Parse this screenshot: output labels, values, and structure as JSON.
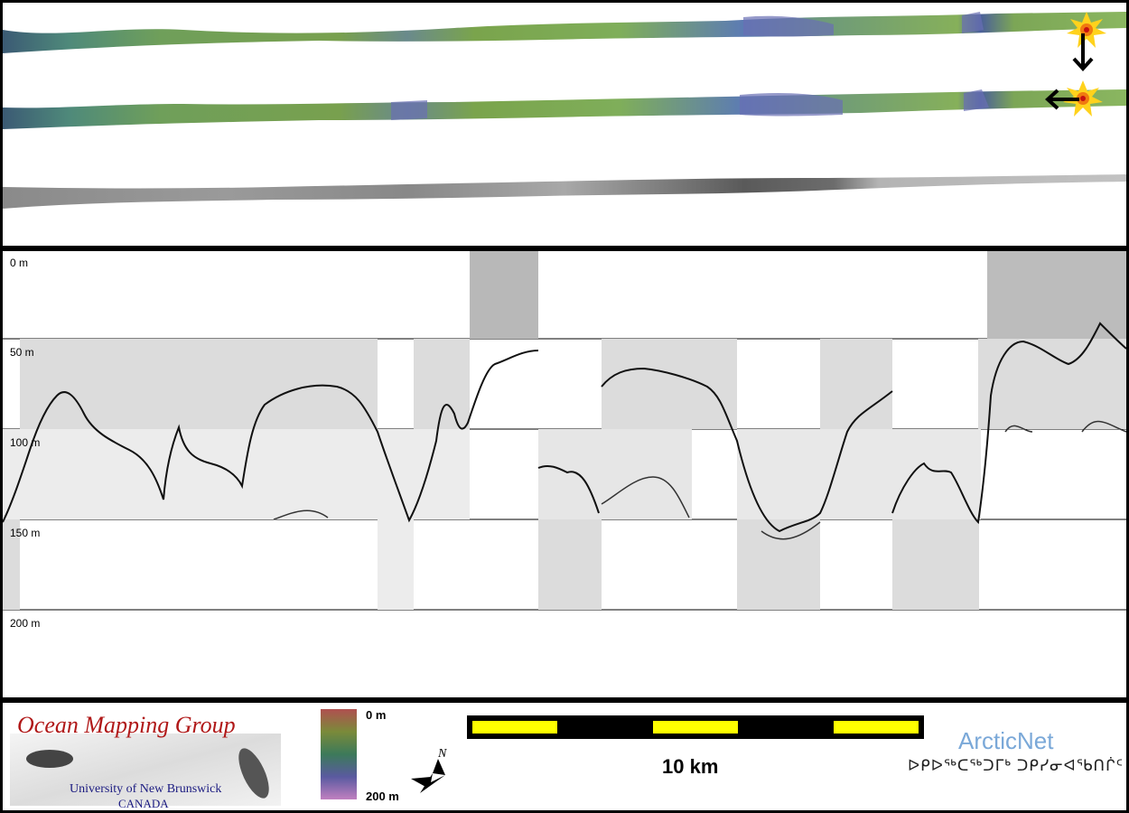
{
  "profile": {
    "depth_labels": [
      "0 m",
      "50 m",
      "100 m",
      "150 m",
      "200 m"
    ]
  },
  "footer": {
    "ocean_mapping_group": {
      "title": "Ocean Mapping Group",
      "university": "University of New Brunswick",
      "country": "CANADA"
    },
    "color_scale": {
      "top_label": "0 m",
      "bottom_label": "200 m"
    },
    "compass": {
      "north_label": "N"
    },
    "scale_bar": {
      "label": "10 km",
      "colors": [
        "#ffff00",
        "#000000"
      ]
    },
    "arcticnet": {
      "name": "ArcticNet",
      "inuktitut": "ᐅᑭᐅᖅᑕᖅᑐᒥᒃ ᑐᑭᓯᓂᐊᖃᑎᒌᑦ"
    }
  }
}
